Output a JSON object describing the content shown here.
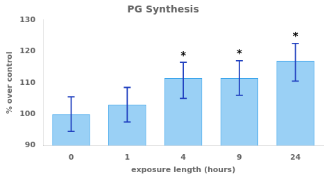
{
  "chart_data": {
    "type": "bar",
    "title": "PG Synthesis",
    "xlabel": "exposure length (hours)",
    "ylabel": "% over control",
    "categories": [
      "0",
      "1",
      "4",
      "9",
      "24"
    ],
    "values": [
      100.0,
      103.0,
      111.5,
      111.5,
      117.0
    ],
    "error_lower": [
      5.5,
      5.5,
      6.5,
      5.5,
      6.5
    ],
    "error_upper": [
      5.5,
      5.5,
      5.0,
      5.5,
      5.5
    ],
    "ylim": [
      90,
      130
    ],
    "yticks": [
      90,
      100,
      110,
      120,
      130
    ],
    "grid": false,
    "annotations": [
      {
        "text": "*",
        "category": "4"
      },
      {
        "text": "*",
        "category": "9"
      },
      {
        "text": "*",
        "category": "24"
      }
    ]
  }
}
